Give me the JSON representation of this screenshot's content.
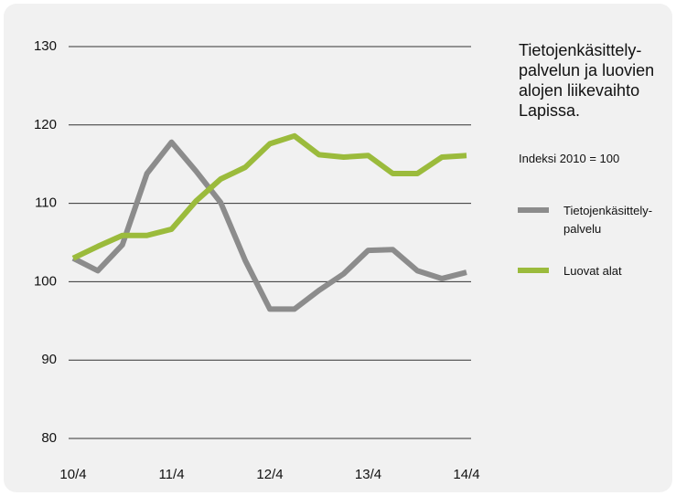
{
  "chart_data": {
    "type": "line",
    "title": "Tietojenkäsittely-palvelun ja luovien alojen liikevaihto Lapissa.",
    "subtitle": "Indeksi 2010 = 100",
    "categories": [
      "10/4",
      null,
      null,
      null,
      "11/4",
      null,
      null,
      null,
      "12/4",
      null,
      null,
      null,
      "13/4",
      null,
      null,
      null,
      "14/4"
    ],
    "series": [
      {
        "name": "Tietojenkäsittely-palvelu",
        "color": "#8c8c8c",
        "values": [
          103,
          101.4,
          104.7,
          113.8,
          117.8,
          114.1,
          110.1,
          102.7,
          96.5,
          96.5,
          98.9,
          101,
          104,
          104.1,
          101.4,
          100.4,
          101.2
        ]
      },
      {
        "name": "Luovat alat",
        "color": "#9bbb3c",
        "values": [
          103,
          104.5,
          105.9,
          105.9,
          106.7,
          110.3,
          113.1,
          114.6,
          117.6,
          118.6,
          116.2,
          115.9,
          116.1,
          113.8,
          113.8,
          115.9,
          116.1
        ]
      }
    ],
    "ylim": [
      80,
      130
    ],
    "yticks": [
      80,
      90,
      100,
      110,
      120,
      130
    ],
    "grid": true,
    "legend": "right"
  }
}
